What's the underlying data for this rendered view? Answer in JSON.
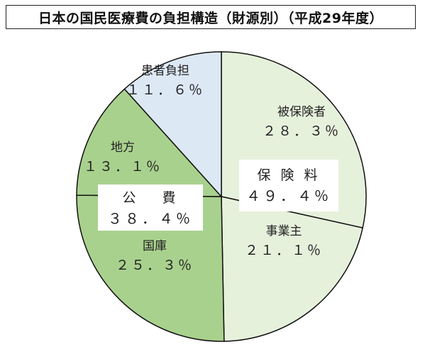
{
  "title": "日本の国民医療費の負担構造（財源別）（平成29年度）",
  "chart_data": {
    "type": "pie",
    "slices": [
      {
        "name": "被保険者",
        "value": 28.3,
        "label": "２８．３％",
        "color": "#e6f1dc"
      },
      {
        "name": "事業主",
        "value": 21.1,
        "label": "２１．１％",
        "color": "#e6f1dc"
      },
      {
        "name": "国庫",
        "value": 25.3,
        "label": "２５．３％",
        "color": "#a9d18e"
      },
      {
        "name": "地方",
        "value": 13.1,
        "label": "１３．１％",
        "color": "#a9d18e"
      },
      {
        "name": "患者負担",
        "value": 11.6,
        "label": "１１．６％",
        "color": "#dde8f5"
      }
    ],
    "groups": [
      {
        "name": "保 険 料",
        "label": "４９．４％"
      },
      {
        "name": "公 　費",
        "label": "３８．４％"
      }
    ]
  }
}
